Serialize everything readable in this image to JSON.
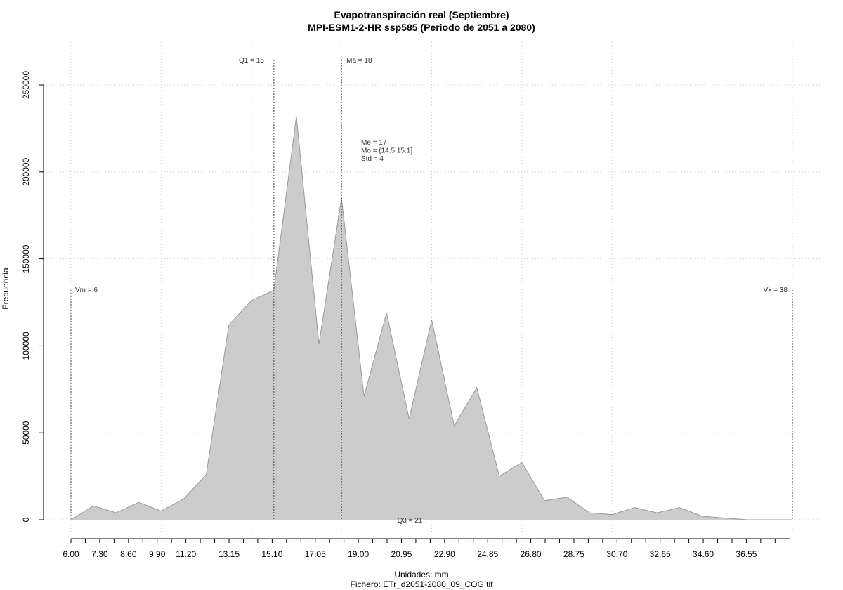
{
  "chart_data": {
    "type": "area",
    "title": "Evapotranspiración real (Septiembre)",
    "subtitle": "MPI-ESM1-2-HR ssp585 (Periodo de 2051 a 2080)",
    "xlabel": "Unidades: mm",
    "caption": "Fichero: ETr_d2051-2080_09_COG.tif",
    "ylabel": "Frecuencia",
    "xlim": [
      6.0,
      38.0
    ],
    "ylim": [
      0,
      250000
    ],
    "x_ticks": [
      "6.00",
      "7.30",
      "8.60",
      "9.90",
      "11.20",
      "13.15",
      "15.10",
      "17.05",
      "19.00",
      "20.95",
      "22.90",
      "24.85",
      "26.80",
      "28.75",
      "30.70",
      "32.65",
      "34.60",
      "36.55"
    ],
    "x_tick_values": [
      6.0,
      7.3,
      8.6,
      9.9,
      11.2,
      13.15,
      15.1,
      17.05,
      19.0,
      20.95,
      22.9,
      24.85,
      26.8,
      28.75,
      30.7,
      32.65,
      34.6,
      36.55
    ],
    "y_ticks": [
      0,
      50000,
      100000,
      150000,
      200000,
      250000
    ],
    "grid": true,
    "fill_color": "#cccccc",
    "line_color": "#999999",
    "x": [
      6.0,
      7.0,
      8.0,
      9.0,
      10.0,
      11.0,
      12.0,
      13.0,
      14.0,
      15.0,
      16.0,
      17.0,
      18.0,
      19.0,
      20.0,
      21.0,
      22.0,
      23.0,
      24.0,
      25.0,
      26.0,
      27.0,
      28.0,
      29.0,
      30.0,
      31.0,
      32.0,
      33.0,
      34.0,
      35.0,
      36.0,
      37.0,
      38.0
    ],
    "values": [
      0,
      8000,
      4000,
      10000,
      5000,
      12000,
      26000,
      112000,
      126000,
      132000,
      232000,
      101000,
      185000,
      71000,
      119000,
      58000,
      115000,
      54000,
      76000,
      25000,
      33000,
      11000,
      13000,
      4000,
      3000,
      7000,
      4000,
      7000,
      2000,
      1000,
      0,
      0,
      0
    ],
    "annotations": {
      "q1": {
        "label": "Q1 = 15",
        "x": 15.0
      },
      "ma": {
        "label": "Ma = 18",
        "x": 18.0
      },
      "vm": {
        "label": "Vm = 6",
        "x": 6.0
      },
      "vx": {
        "label": "Vx = 38",
        "x": 38.0
      },
      "q3": {
        "label": "Q3 = 21",
        "x": 21.0
      },
      "stats": [
        "Me = 17",
        "Mo = (14.5,15.1]",
        "Std = 4"
      ]
    }
  }
}
